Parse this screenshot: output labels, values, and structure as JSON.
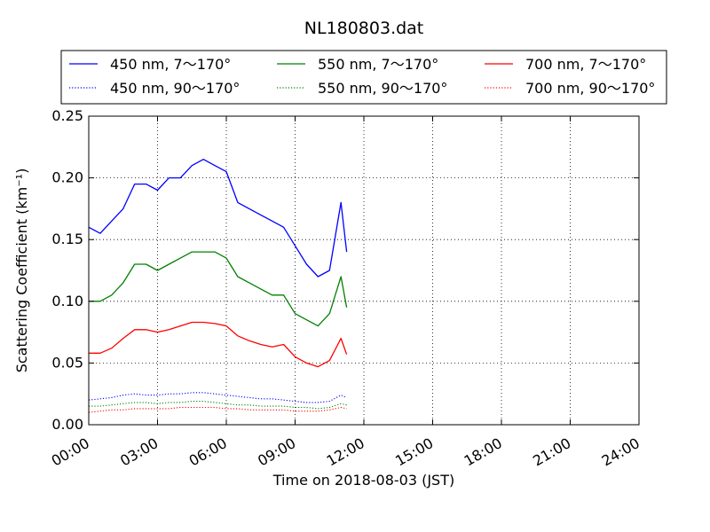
{
  "chart_data": {
    "type": "line",
    "title": "NL180803.dat",
    "xlabel": "Time on 2018-08-03 (JST)",
    "ylabel": "Scattering Coefficient (km⁻¹)",
    "xlim": [
      "00:00",
      "24:00"
    ],
    "ylim": [
      0,
      0.25
    ],
    "x_ticks": [
      "00:00",
      "03:00",
      "06:00",
      "09:00",
      "12:00",
      "15:00",
      "18:00",
      "21:00",
      "24:00"
    ],
    "y_ticks": [
      "0.00",
      "0.05",
      "0.10",
      "0.15",
      "0.20",
      "0.25"
    ],
    "grid": true,
    "legend_position": "top (above plot), 3 columns",
    "x": [
      "00:00",
      "00:30",
      "01:00",
      "01:30",
      "02:00",
      "02:30",
      "03:00",
      "03:30",
      "04:00",
      "04:30",
      "05:00",
      "05:30",
      "06:00",
      "06:30",
      "07:00",
      "07:30",
      "08:00",
      "08:30",
      "09:00",
      "09:30",
      "10:00",
      "10:30",
      "11:00",
      "11:15"
    ],
    "series": [
      {
        "name": "450 nm, 7～170°",
        "color": "#0000ff",
        "style": "solid",
        "values": [
          0.16,
          0.155,
          0.165,
          0.175,
          0.195,
          0.195,
          0.19,
          0.2,
          0.2,
          0.21,
          0.215,
          0.21,
          0.205,
          0.18,
          0.175,
          0.17,
          0.165,
          0.16,
          0.145,
          0.13,
          0.12,
          0.125,
          0.18,
          0.14
        ]
      },
      {
        "name": "550 nm, 7～170°",
        "color": "#008000",
        "style": "solid",
        "values": [
          0.1,
          0.1,
          0.105,
          0.115,
          0.13,
          0.13,
          0.125,
          0.13,
          0.135,
          0.14,
          0.14,
          0.14,
          0.135,
          0.12,
          0.115,
          0.11,
          0.105,
          0.105,
          0.09,
          0.085,
          0.08,
          0.09,
          0.12,
          0.095
        ]
      },
      {
        "name": "700 nm, 7～170°",
        "color": "#ff0000",
        "style": "solid",
        "values": [
          0.058,
          0.058,
          0.062,
          0.07,
          0.077,
          0.077,
          0.075,
          0.077,
          0.08,
          0.083,
          0.083,
          0.082,
          0.08,
          0.072,
          0.068,
          0.065,
          0.063,
          0.065,
          0.055,
          0.05,
          0.047,
          0.052,
          0.07,
          0.057
        ]
      },
      {
        "name": "450 nm, 90～170°",
        "color": "#0000ff",
        "style": "dotted",
        "values": [
          0.02,
          0.021,
          0.022,
          0.024,
          0.025,
          0.024,
          0.024,
          0.025,
          0.025,
          0.026,
          0.026,
          0.025,
          0.024,
          0.023,
          0.022,
          0.021,
          0.021,
          0.02,
          0.019,
          0.018,
          0.018,
          0.019,
          0.024,
          0.022
        ]
      },
      {
        "name": "550 nm, 90～170°",
        "color": "#008000",
        "style": "dotted",
        "values": [
          0.015,
          0.015,
          0.016,
          0.017,
          0.018,
          0.018,
          0.017,
          0.018,
          0.018,
          0.019,
          0.019,
          0.018,
          0.017,
          0.016,
          0.016,
          0.015,
          0.015,
          0.015,
          0.014,
          0.014,
          0.013,
          0.014,
          0.017,
          0.016
        ]
      },
      {
        "name": "700 nm, 90～170°",
        "color": "#ff0000",
        "style": "dotted",
        "values": [
          0.01,
          0.011,
          0.012,
          0.012,
          0.013,
          0.013,
          0.013,
          0.013,
          0.014,
          0.014,
          0.014,
          0.014,
          0.013,
          0.013,
          0.012,
          0.012,
          0.012,
          0.012,
          0.011,
          0.011,
          0.011,
          0.012,
          0.014,
          0.013
        ]
      }
    ]
  }
}
